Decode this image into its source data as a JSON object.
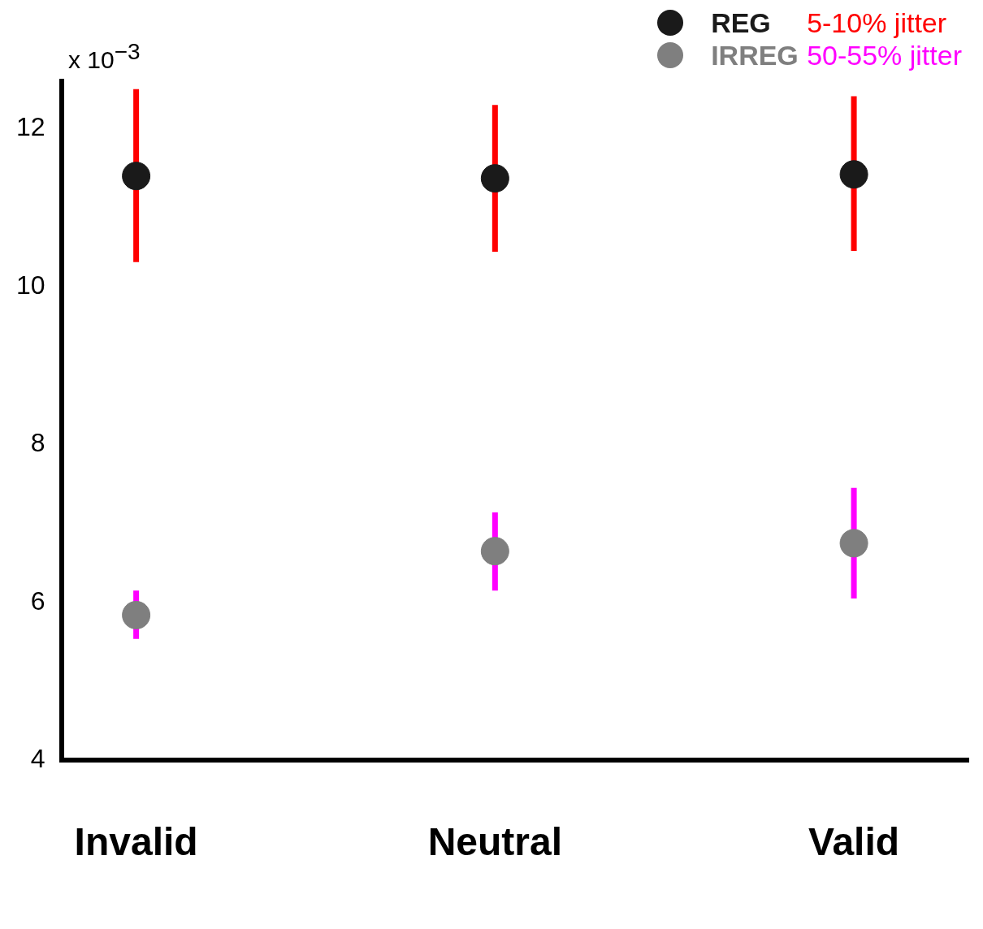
{
  "chart_data": {
    "type": "scatter",
    "categories": [
      "Invalid",
      "Neutral",
      "Valid"
    ],
    "series": [
      {
        "name": "REG",
        "color": "#1a1a1a",
        "values": [
          11.4,
          11.37,
          11.42
        ]
      },
      {
        "name": "IRREG",
        "color": "#7f7f7f",
        "values": [
          5.84,
          6.65,
          6.75
        ]
      },
      {
        "type": "line",
        "marker": "none",
        "color": "#ff0000",
        "x": [
          "Invalid",
          "Invalid"
        ],
        "values": [
          10.31,
          12.5
        ]
      },
      {
        "type": "line",
        "marker": "none",
        "color": "#ff0000",
        "x": [
          "Neutral",
          "Neutral"
        ],
        "values": [
          10.44,
          12.3
        ]
      },
      {
        "type": "line",
        "marker": "none",
        "color": "#ff0000",
        "x": [
          "Valid",
          "Valid"
        ],
        "values": [
          10.45,
          12.41
        ]
      },
      {
        "type": "line",
        "marker": "none",
        "color": "#ff00ff",
        "x": [
          "Invalid",
          "Invalid"
        ],
        "values": [
          5.54,
          6.15
        ]
      },
      {
        "type": "line",
        "marker": "none",
        "color": "#ff00ff",
        "x": [
          "Neutral",
          "Neutral"
        ],
        "values": [
          6.15,
          7.14
        ]
      },
      {
        "type": "line",
        "marker": "none",
        "color": "#ff00ff",
        "x": [
          "Valid",
          "Valid"
        ],
        "values": [
          6.05,
          7.45
        ]
      }
    ],
    "ylim": [
      4,
      12.6
    ],
    "yticks": [
      4,
      6,
      8,
      10,
      12
    ],
    "grid": false,
    "legend": "top right",
    "marker": "circle",
    "annotations": [
      "x 10$^{−3}$",
      "5-10% jitter",
      "50-55% jitter"
    ]
  }
}
